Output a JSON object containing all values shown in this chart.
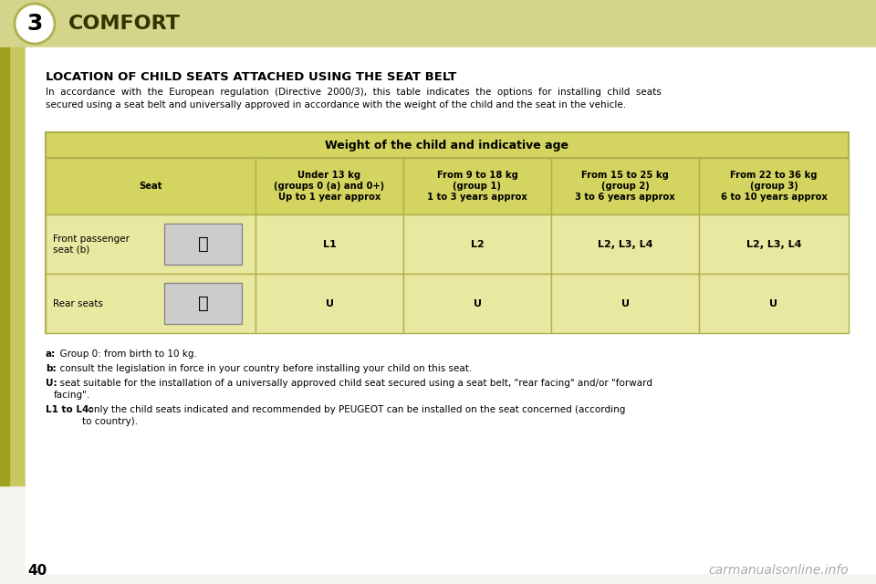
{
  "bg_color": "#f5f5f0",
  "header_bg": "#d4d48a",
  "header_text": "COMFORT",
  "chapter_num": "3",
  "page_num": "40",
  "title": "LOCATION OF CHILD SEATS ATTACHED USING THE SEAT BELT",
  "intro_text": "In  accordance  with  the  European  regulation  (Directive  2000/3),  this  table  indicates  the  options  for  installing  child  seats\nsecured using a seat belt and universally approved in accordance with the weight of the child and the seat in the vehicle.",
  "table_header_bg": "#d4d460",
  "table_cell_bg": "#e8e8a0",
  "table_header_text": "Weight of the child and indicative age",
  "col_headers": [
    "Seat",
    "Under 13 kg\n(groups 0 (a) and 0+)\nUp to 1 year approx",
    "From 9 to 18 kg\n(group 1)\n1 to 3 years approx",
    "From 15 to 25 kg\n(group 2)\n3 to 6 years approx",
    "From 22 to 36 kg\n(group 3)\n6 to 10 years approx"
  ],
  "row1_label": "Front passenger\nseat (b)",
  "row1_values": [
    "L1",
    "L2",
    "L2, L3, L4",
    "L2, L3, L4"
  ],
  "row2_label": "Rear seats",
  "row2_values": [
    "U",
    "U",
    "U",
    "U"
  ],
  "footnotes": [
    [
      "a:",
      "  Group 0: from birth to 10 kg."
    ],
    [
      "b:",
      "  consult the legislation in force in your country before installing your child on this seat."
    ],
    [
      "U:",
      "  seat suitable for the installation of a universally approved child seat secured using a seat belt, \"rear facing\" and/or \"forward\n        facing\"."
    ],
    [
      "L1 to L4:",
      "  only the child seats indicated and recommended by PEUGEOT can be installed on the seat concerned (according\n        to country)."
    ]
  ],
  "watermark": "carmanualsonline.info",
  "side_tab_color": "#c8c860",
  "border_color": "#b0b050"
}
